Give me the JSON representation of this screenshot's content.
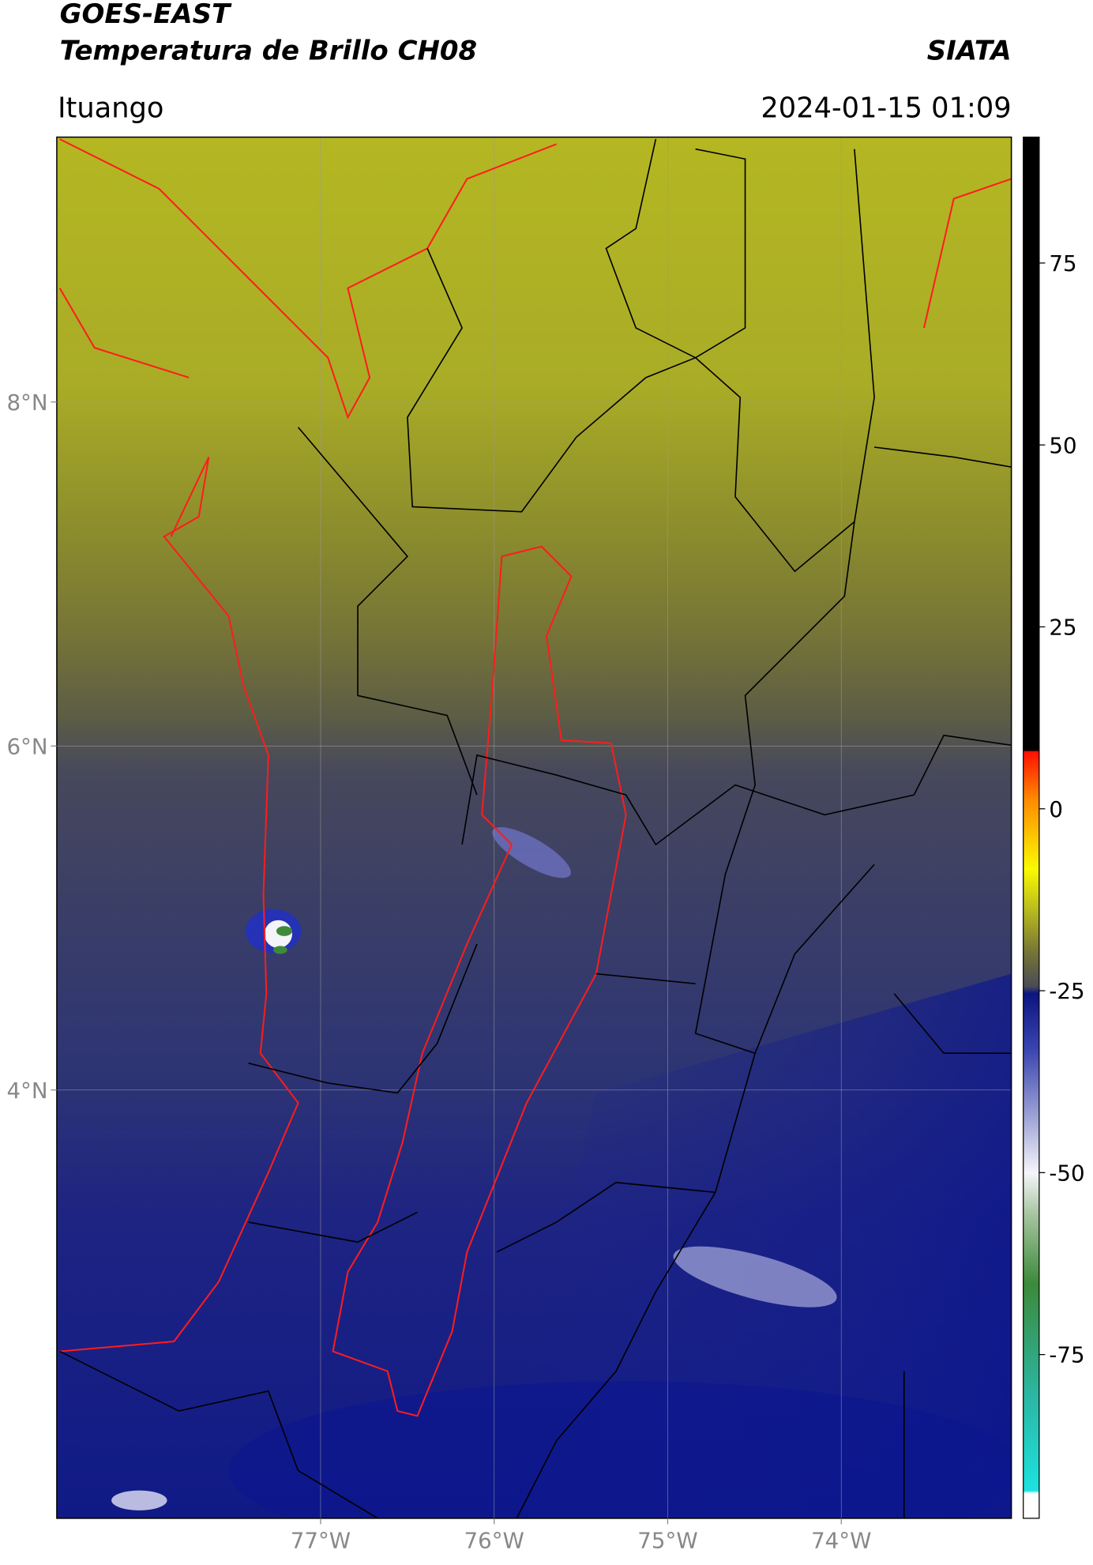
{
  "header": {
    "title": "GOES-EAST",
    "subtitle": "Temperatura de Brillo CH08",
    "source": "SIATA",
    "region": "Ituango",
    "datetime": "2024-01-15 01:09"
  },
  "map": {
    "xlim": [
      -78.52,
      -73.02
    ],
    "ylim": [
      1.51,
      9.54
    ],
    "xticks": [
      {
        "value": -77,
        "label": "77°W"
      },
      {
        "value": -76,
        "label": "76°W"
      },
      {
        "value": -75,
        "label": "75°W"
      },
      {
        "value": -74,
        "label": "74°W"
      }
    ],
    "yticks": [
      {
        "value": 4,
        "label": "4°N"
      },
      {
        "value": 6,
        "label": "6°N"
      },
      {
        "value": 8,
        "label": "8°N"
      }
    ],
    "grid": true
  },
  "colorbar": {
    "lim": [
      -97.5,
      92.3
    ],
    "ticks": [
      -75,
      -50,
      -25,
      0,
      25,
      50,
      75
    ]
  }
}
